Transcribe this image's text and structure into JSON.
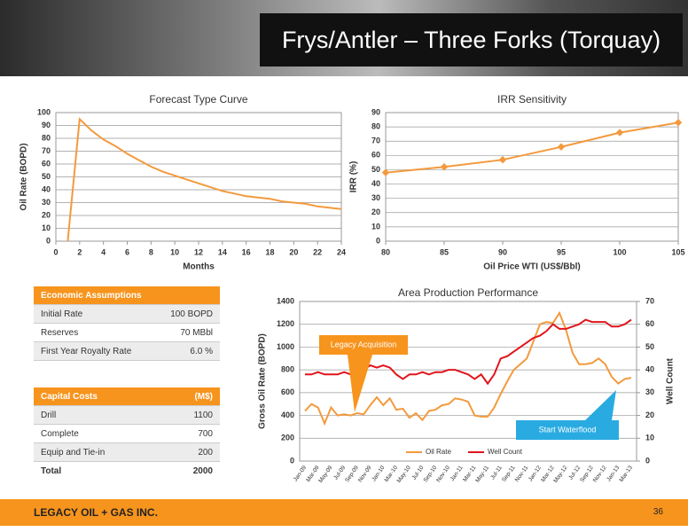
{
  "title": "Frys/Antler – Three Forks (Torquay)",
  "economic_assumptions": {
    "header": "Economic Assumptions",
    "rows": [
      [
        "Initial Rate",
        "100 BOPD"
      ],
      [
        "Reserves",
        "70 MBbl"
      ],
      [
        "First Year Royalty Rate",
        "6.0 %"
      ]
    ]
  },
  "capital_costs": {
    "header": [
      "Capital Costs",
      "(M$)"
    ],
    "rows": [
      [
        "Drill",
        "1100"
      ],
      [
        "Complete",
        "700"
      ],
      [
        "Equip and Tie-in",
        "200"
      ]
    ],
    "total": [
      "Total",
      "2000"
    ]
  },
  "chart_data": [
    {
      "type": "line",
      "title": "Forecast Type Curve",
      "xlabel": "Months",
      "ylabel": "Oil Rate (BOPD)",
      "color": "#f39a3d",
      "grid": true,
      "x": [
        1,
        2,
        3,
        4,
        5,
        6,
        7,
        8,
        9,
        10,
        11,
        12,
        13,
        14,
        15,
        16,
        17,
        18,
        19,
        20,
        21,
        22,
        23,
        24
      ],
      "values": [
        0,
        95,
        86,
        79,
        74,
        68,
        63,
        58,
        54,
        51,
        48,
        45,
        42,
        39,
        37,
        35,
        34,
        33,
        31,
        30,
        29,
        27,
        26,
        25
      ],
      "xlim": [
        0,
        24
      ],
      "xticks": [
        0,
        2,
        4,
        6,
        8,
        10,
        12,
        14,
        16,
        18,
        20,
        22,
        24
      ],
      "ylim": [
        0,
        100
      ],
      "yticks": [
        0,
        10,
        20,
        30,
        40,
        50,
        60,
        70,
        80,
        90,
        100
      ]
    },
    {
      "type": "line",
      "title": "IRR Sensitivity",
      "xlabel": "Oil Price WTI (US$/Bbl)",
      "ylabel": "IRR (%)",
      "color": "#f39a3d",
      "grid": true,
      "markers": "diamond",
      "x": [
        80,
        85,
        90,
        95,
        100,
        105
      ],
      "values": [
        48,
        52,
        57,
        66,
        76,
        83
      ],
      "xlim": [
        80,
        105
      ],
      "xticks": [
        80,
        85,
        90,
        95,
        100,
        105
      ],
      "ylim": [
        0,
        90
      ],
      "yticks": [
        0,
        10,
        20,
        30,
        40,
        50,
        60,
        70,
        80,
        90
      ]
    },
    {
      "type": "line",
      "title": "Area Production Performance",
      "ylabel": "Gross Oil Rate (BOPD)",
      "y2label": "Well Count",
      "grid": true,
      "legend": "bottom",
      "categories": [
        "Jan-09",
        null,
        "Mar-09",
        null,
        "May-09",
        null,
        "Jul-09",
        null,
        "Sep-09",
        null,
        "Nov-09",
        null,
        "Jan-10",
        null,
        "Mar-10",
        null,
        "May-10",
        null,
        "Jul-10",
        null,
        "Sep-10",
        null,
        "Nov-10",
        null,
        "Jan-11",
        null,
        "Mar-11",
        null,
        "May-11",
        null,
        "Jul-11",
        null,
        "Sep-11",
        null,
        "Nov-11",
        null,
        "Jan-12",
        null,
        "Mar-12",
        null,
        "May-12",
        null,
        "Jul-12",
        null,
        "Sep-12",
        null,
        "Nov-12",
        null,
        "Jan-13",
        null,
        "Mar-13"
      ],
      "series": [
        {
          "name": "Oil Rate",
          "color": "#f39a3d",
          "values": [
            440,
            500,
            470,
            330,
            470,
            400,
            410,
            400,
            420,
            410,
            490,
            560,
            490,
            550,
            450,
            460,
            380,
            420,
            360,
            440,
            450,
            490,
            500,
            550,
            540,
            520,
            400,
            390,
            390,
            470,
            590,
            700,
            800,
            850,
            900,
            1050,
            1200,
            1220,
            1210,
            1300,
            1150,
            950,
            850,
            850,
            860,
            900,
            850,
            740,
            680,
            720,
            730
          ]
        },
        {
          "name": "Well Count",
          "color": "#e0151b",
          "axis": "y2",
          "values": [
            38,
            38,
            39,
            38,
            38,
            38,
            39,
            38,
            39,
            40,
            42,
            41,
            42,
            41,
            38,
            36,
            38,
            38,
            39,
            38,
            39,
            39,
            40,
            40,
            39,
            38,
            36,
            38,
            34,
            38,
            45,
            46,
            48,
            50,
            52,
            54,
            55,
            57,
            60,
            58,
            58,
            59,
            60,
            62,
            61,
            61,
            61,
            59,
            59,
            60,
            62
          ]
        }
      ],
      "ylim": [
        0,
        1400
      ],
      "yticks": [
        0,
        200,
        400,
        600,
        800,
        1000,
        1200,
        1400
      ],
      "y2lim": [
        0,
        70
      ],
      "y2ticks": [
        0,
        10,
        20,
        30,
        40,
        50,
        60,
        70
      ],
      "annotations": [
        "Legacy Acquisition",
        "Start Waterflood"
      ]
    }
  ],
  "footer": {
    "company": "LEGACY OIL + GAS INC.",
    "page": "36"
  }
}
